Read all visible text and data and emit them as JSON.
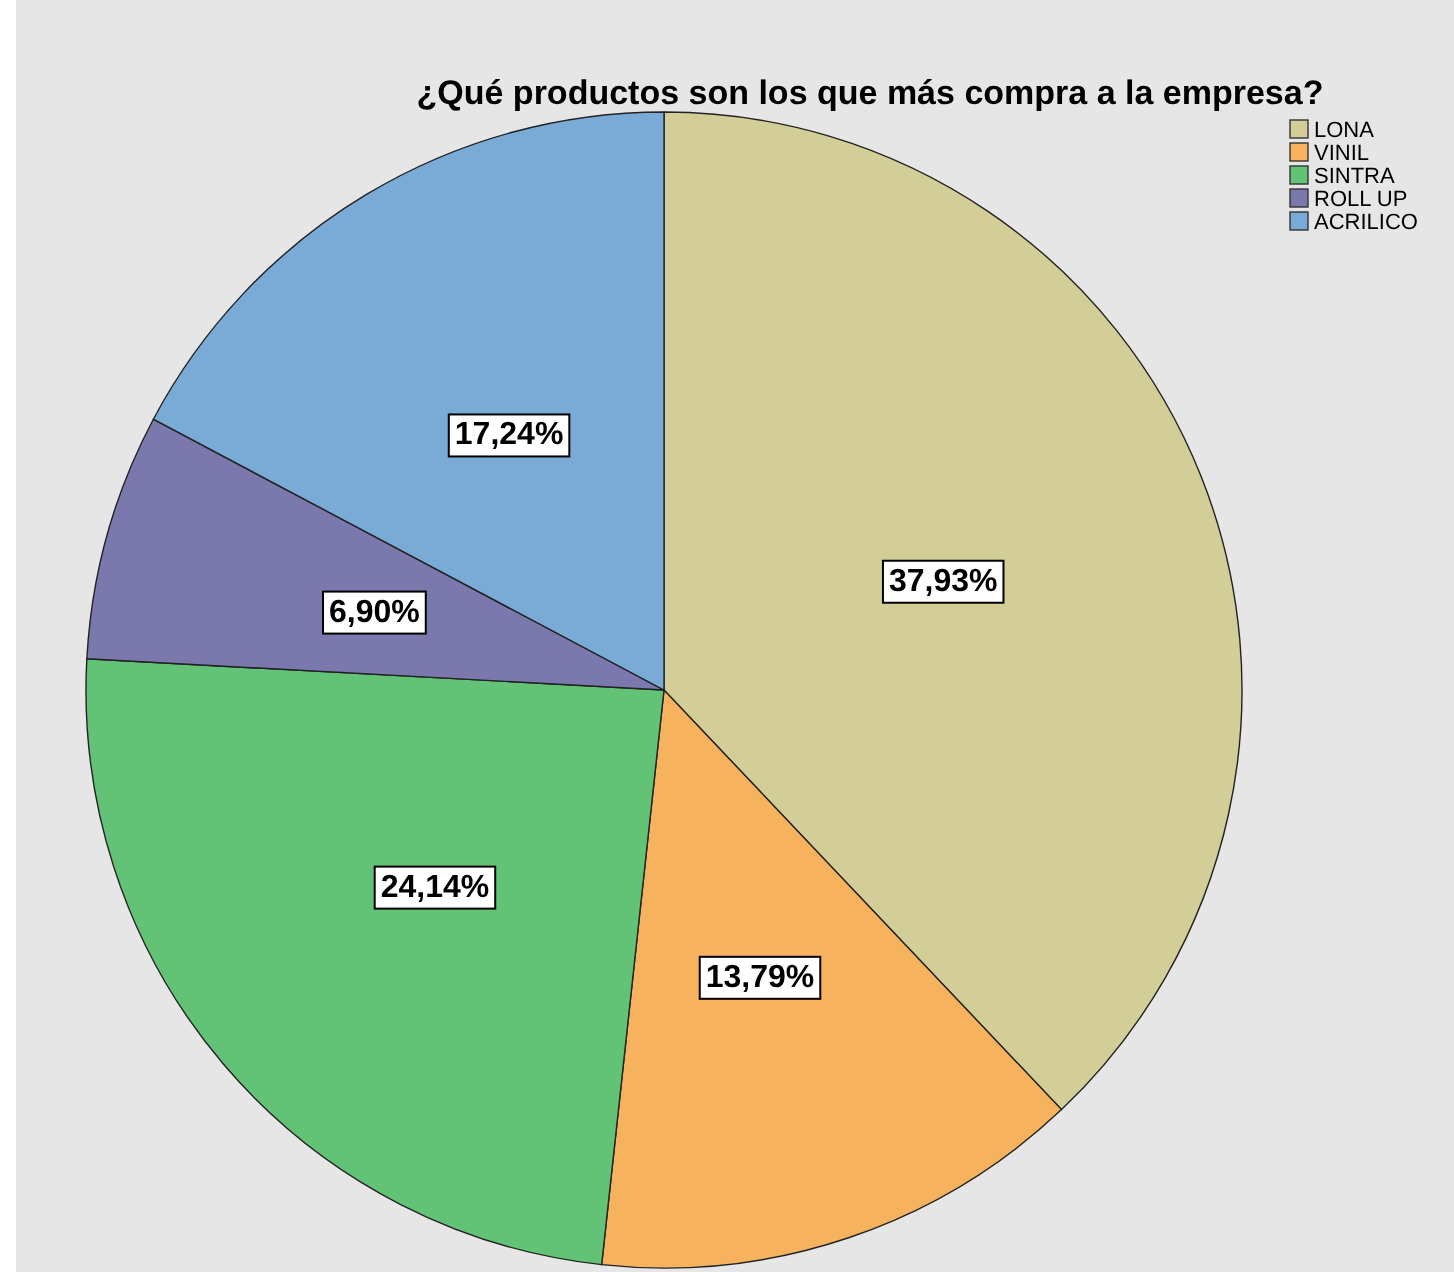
{
  "chart_data": {
    "type": "pie",
    "title": "¿Qué productos son los que más compra a la empresa?",
    "categories": [
      "LONA",
      "VINIL",
      "SINTRA",
      "ROLL UP",
      "ACRILICO"
    ],
    "values": [
      37.93,
      13.79,
      24.14,
      6.9,
      17.24
    ],
    "value_labels": [
      "37,93%",
      "13,79%",
      "24,14%",
      "6,90%",
      "17,24%"
    ],
    "colors": [
      "#d3ce97",
      "#f7b25e",
      "#62c376",
      "#7b78ae",
      "#7aaad6"
    ],
    "legend": "top right"
  }
}
